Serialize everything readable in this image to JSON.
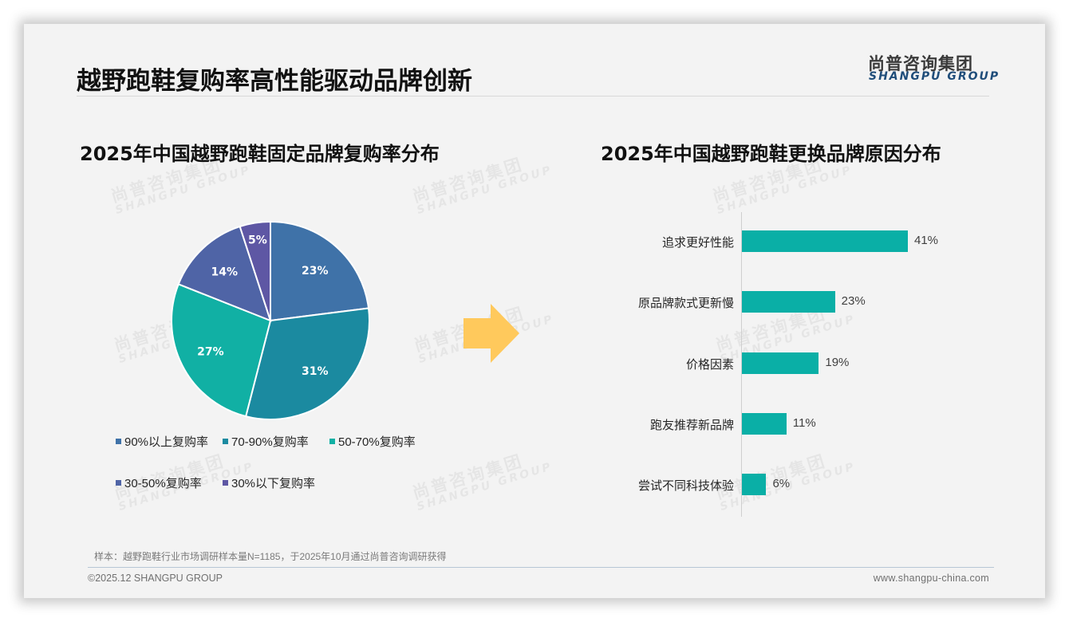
{
  "header": {
    "title": "越野跑鞋复购率高性能驱动品牌创新",
    "logo_cn": "尚普咨询集团",
    "logo_en": "SHANGPU GROUP"
  },
  "watermark": {
    "cn": "尚普咨询集团",
    "en": "SHANGPU GROUP"
  },
  "left_chart": {
    "title": "2025年中国越野跑鞋固定品牌复购率分布"
  },
  "right_chart": {
    "title": "2025年中国越野跑鞋更换品牌原因分布"
  },
  "arrow": {
    "color": "#ffc95c",
    "icon": "arrow-right-icon"
  },
  "colors": {
    "pie": [
      "#3f72a8",
      "#1b8aa0",
      "#11b0a4",
      "#4f64a6",
      "#5e57a4"
    ],
    "bar": "#0aafa6"
  },
  "chart_data": [
    {
      "type": "pie",
      "title": "2025年中国越野跑鞋固定品牌复购率分布",
      "categories": [
        "90%以上复购率",
        "70-90%复购率",
        "50-70%复购率",
        "30-50%复购率",
        "30%以下复购率"
      ],
      "values": [
        23,
        31,
        27,
        14,
        5
      ],
      "labels": [
        "23%",
        "31%",
        "27%",
        "14%",
        "5%"
      ],
      "unit": "%",
      "legend_position": "bottom",
      "start_angle": "12 o'clock, clockwise"
    },
    {
      "type": "bar",
      "orientation": "horizontal",
      "title": "2025年中国越野跑鞋更换品牌原因分布",
      "categories": [
        "追求更好性能",
        "原品牌款式更新慢",
        "价格因素",
        "跑友推荐新品牌",
        "尝试不同科技体验"
      ],
      "values": [
        41,
        23,
        19,
        11,
        6
      ],
      "labels": [
        "41%",
        "23%",
        "19%",
        "11%",
        "6%"
      ],
      "unit": "%",
      "xlabel": "",
      "ylabel": "",
      "grid": false,
      "legend": "none"
    }
  ],
  "footer": {
    "note": "样本：越野跑鞋行业市场调研样本量N=1185，于2025年10月通过尚普咨询调研获得",
    "copyright": "©2025.12 SHANGPU GROUP",
    "website": "www.shangpu-china.com"
  }
}
